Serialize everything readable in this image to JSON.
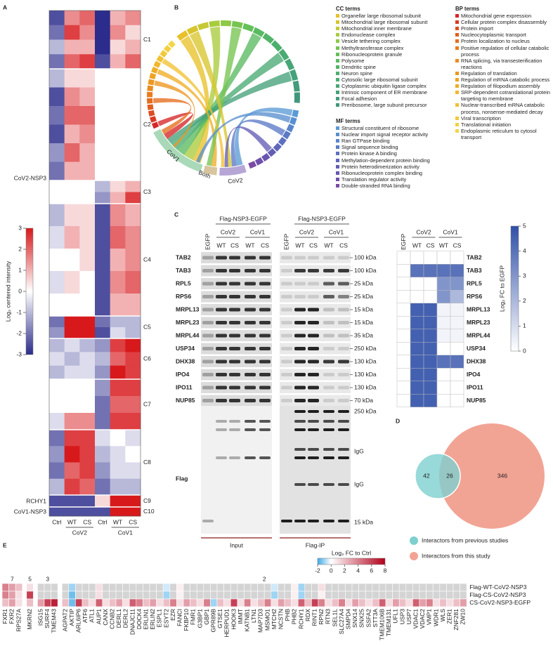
{
  "panel_labels": [
    "A",
    "B",
    "C",
    "D",
    "E"
  ],
  "panel_a": {
    "colorbar": {
      "label": "Log₂ centered intensity",
      "lim": [
        -3,
        3
      ],
      "ticks": [
        3,
        2,
        1,
        0,
        -1,
        -2,
        -3
      ],
      "color_stops": [
        [
          -3,
          "#2b2c8c"
        ],
        [
          0,
          "#ffffff"
        ],
        [
          3,
          "#d7191c"
        ]
      ]
    },
    "columns": [
      "Ctrl",
      "WT",
      "CS",
      "Ctrl",
      "WT",
      "CS"
    ],
    "groups": [
      "CoV2",
      "CoV1"
    ],
    "clusters": [
      {
        "name": "C1",
        "values": [
          [
            -2.5,
            1.5,
            2,
            -3,
            1,
            1.5
          ],
          [
            -2,
            2.5,
            1.5,
            -3,
            1.5,
            0.5
          ],
          [
            -1,
            1,
            1,
            -3,
            0.5,
            1
          ],
          [
            -2,
            2,
            2.5,
            -2.5,
            1,
            2
          ]
        ]
      },
      {
        "name": "C2",
        "values": [
          [
            -1,
            0.5,
            0.5,
            0,
            0,
            0
          ],
          [
            -2.5,
            1.5,
            1,
            0,
            0,
            0
          ],
          [
            -2,
            2,
            2,
            0,
            0,
            0
          ],
          [
            -2.5,
            1,
            1.5,
            0,
            0,
            0
          ],
          [
            -1.5,
            2,
            1,
            0,
            0,
            0
          ],
          [
            -2,
            1,
            1,
            0,
            0,
            0
          ]
        ]
      },
      {
        "name": "C3",
        "values": [
          [
            0,
            0,
            0,
            -1,
            0.5,
            1
          ],
          [
            0,
            0,
            0,
            -1.5,
            1,
            2.5
          ]
        ]
      },
      {
        "name": "C4",
        "values": [
          [
            -1,
            0.5,
            0.5,
            -2.5,
            1.5,
            1
          ],
          [
            -0.5,
            1,
            0.5,
            -2.5,
            2,
            1.5
          ],
          [
            0,
            0,
            0.5,
            -2.5,
            1,
            1.5
          ],
          [
            -0.5,
            0.5,
            0,
            -2.5,
            1.5,
            2
          ],
          [
            0,
            0,
            0,
            -2.5,
            1,
            1
          ]
        ]
      },
      {
        "name": "C5",
        "values": [
          [
            -2,
            3,
            3,
            -2,
            -1,
            -1
          ],
          [
            -1.5,
            3,
            3,
            -2.5,
            -0.5,
            -1
          ]
        ]
      },
      {
        "name": "C6",
        "values": [
          [
            -1,
            -0.5,
            -1,
            -1.5,
            2.5,
            3
          ],
          [
            -0.5,
            -1,
            -0.5,
            -1,
            2,
            2.5
          ],
          [
            -1,
            -0.5,
            -0.5,
            -1.5,
            3,
            2.5
          ]
        ]
      },
      {
        "name": "C7",
        "values": [
          [
            0,
            0,
            0,
            -1.5,
            2.5,
            2.5
          ],
          [
            0,
            0,
            0,
            -2,
            2,
            2
          ],
          [
            -0.5,
            1.5,
            1.5,
            -2,
            2.5,
            2.5
          ]
        ]
      },
      {
        "name": "C8",
        "values": [
          [
            -2,
            2.5,
            2.5,
            -0.5,
            0,
            -0.5
          ],
          [
            -1.5,
            3,
            2.5,
            -1,
            -0.5,
            0
          ],
          [
            -2,
            2,
            2.5,
            -1.5,
            -0.5,
            -0.5
          ],
          [
            -1,
            2.5,
            2,
            -2,
            -1,
            -1
          ]
        ]
      },
      {
        "name": "C9",
        "values": [
          [
            -2.5,
            -2.5,
            -2.5,
            0.5,
            3,
            3
          ]
        ]
      },
      {
        "name": "C10",
        "values": [
          [
            -2.5,
            -2.5,
            -2.5,
            -2.5,
            3,
            3
          ]
        ]
      }
    ],
    "row_labels": [
      {
        "text": "CoV2-NSP3",
        "color": "#222222"
      },
      {
        "text": "RCHY1",
        "color": "#d7191c"
      },
      {
        "text": "CoV1-NSP3",
        "color": "#222222"
      }
    ]
  },
  "panel_b": {
    "sets": [
      "CoV1",
      "Both",
      "CoV2"
    ],
    "set_colors": [
      "#a9d9b8",
      "#d8c59d",
      "#b6a6d6"
    ],
    "legends": [
      {
        "title": "CC terms",
        "terms": [
          "Organellar large ribosomal subunit",
          "Mitochondrial large ribosomal subunit",
          "Mitochondrial inner membrane",
          "Endonuclease complex",
          "Vesicle tethering complex",
          "Methyltransferase complex",
          "Ribonucleoprotein granule",
          "Polysome",
          "Dendritic spine",
          "Neuron spine",
          "Cytosolic large ribosomal subunit",
          "Cytoplasmic ubiquitin ligase complex",
          "Intrinsic component of ER membrane",
          "Focal adhesion",
          "Preribosome, large subunit precursor"
        ],
        "colors": [
          "#e8c12a",
          "#d8c52e",
          "#c5c935",
          "#a9cc3d",
          "#8ec947",
          "#77c451",
          "#65c05a",
          "#5aba62",
          "#52b569",
          "#4db06f",
          "#4aab73",
          "#47a677",
          "#45a17a",
          "#439c7c",
          "#41977e"
        ]
      },
      {
        "title": "MF terms",
        "terms": [
          "Structural constituent of ribosome",
          "Nuclear import signal receptor activity",
          "Ran GTPase binding",
          "Signal sequence binding",
          "Protein kinase A binding",
          "Methylation-dependent protein binding",
          "Protein heterodimerization activity",
          "Ribonucleoprotein complex binding",
          "Translation regulator activity",
          "Double-stranded RNA binding"
        ],
        "colors": [
          "#5b9bd5",
          "#5a90d0",
          "#5a85cb",
          "#5b7ac6",
          "#5d70c1",
          "#6066bc",
          "#645db6",
          "#6956b0",
          "#6f50aa",
          "#7a4ba3"
        ]
      },
      {
        "title": "BP terms",
        "terms": [
          "Mitochondrial gene expression",
          "Cellular protein complex disassembly",
          "Protein import",
          "Nucleocytoplasmic transport",
          "Protein localization to nucleus",
          "Positive regulation of cellular catabolic process",
          "RNA splicing, via transesterification reactions",
          "Regulation of translation",
          "Regulation of mRNA catabolic process",
          "Regulation of filopodium assembly",
          "SRP-dependent cotranslational protein targeting to membrane",
          "Nuclear-transcribed mRNA catabolic process, nonsense-mediated decay",
          "Viral transcription",
          "Translational initiation",
          "Endoplasmic reticulum to cytosol transport"
        ],
        "colors": [
          "#d62728",
          "#da3a25",
          "#de4c22",
          "#e25d20",
          "#e56d1e",
          "#e87c1d",
          "#eb8a1e",
          "#ed9720",
          "#efa323",
          "#f0ae27",
          "#f1b82c",
          "#f2c132",
          "#f2c938",
          "#f2d03f",
          "#f1d646"
        ]
      }
    ]
  },
  "panel_c": {
    "construct": "Flag-NSP3-EGFP",
    "control": "EGFP",
    "groups": [
      "CoV2",
      "CoV1"
    ],
    "variants": [
      "WT",
      "CS"
    ],
    "proteins": [
      "TAB2",
      "TAB3",
      "RPL5",
      "RPS6",
      "MRPL13",
      "MRPL23",
      "MRPL44",
      "USP34",
      "DHX38",
      "IPO4",
      "IPO11",
      "NUP85"
    ],
    "kda": [
      "100 kDa",
      "100 kDa",
      "25 kDa",
      "25 kDa",
      "15 kDa",
      "15 kDa",
      "35 kDa",
      "250 kDa",
      "130 kDa",
      "130 kDa",
      "130 kDa",
      "70 kDa"
    ],
    "flag_label": "Flag",
    "flag_markers": [
      "250 kDa",
      "IgG",
      "IgG",
      "15 kDa"
    ],
    "sections": [
      "Input",
      "Flag-IP"
    ],
    "heatmap": {
      "values": [
        [
          0,
          0,
          0,
          0,
          0
        ],
        [
          0,
          4,
          4,
          4,
          4
        ],
        [
          0,
          0,
          0,
          3,
          3
        ],
        [
          0,
          0,
          0,
          3,
          2
        ],
        [
          0,
          4.5,
          4.5,
          0.3,
          0.3
        ],
        [
          0,
          4.5,
          4.5,
          0.3,
          0.3
        ],
        [
          0,
          4.5,
          4.5,
          0.3,
          0.3
        ],
        [
          0,
          4.5,
          4.5,
          0,
          0
        ],
        [
          0,
          4.5,
          4.5,
          4,
          4
        ],
        [
          0,
          4.5,
          4.5,
          0,
          0
        ],
        [
          0,
          4.5,
          4.5,
          0,
          0
        ],
        [
          0,
          4.5,
          4.5,
          0,
          0
        ]
      ],
      "colorbar": {
        "label": "Log₂ FC to EGFP",
        "lim": [
          0,
          5
        ],
        "ticks": [
          0,
          1,
          2,
          3,
          4,
          5
        ],
        "color_stops": [
          [
            0,
            "#ffffff"
          ],
          [
            5,
            "#2f4fa8"
          ]
        ]
      }
    }
  },
  "panel_d": {
    "values": [
      42,
      26,
      346
    ],
    "colors": [
      "#7ecfcf",
      "#f2a494"
    ],
    "legend": [
      "Interactors from previous studies",
      "Interactors from this study"
    ]
  },
  "panel_e": {
    "colorbar": {
      "label": "Log₂ FC to Ctrl",
      "lim": [
        -2,
        8
      ],
      "ticks": [
        -2,
        0,
        2,
        4,
        6,
        8
      ],
      "color_stops": [
        [
          -2,
          "#3fa9e6"
        ],
        [
          0,
          "#ffffff"
        ],
        [
          8,
          "#b2001b"
        ]
      ]
    },
    "missing_color": "#d4d4d4",
    "highlight_color": "#d7191c",
    "rows": [
      "Flag-WT-CoV2-NSP3",
      "Flag-CS-CoV2-NSP3",
      "CS-CoV2-NSP3-EGFP"
    ],
    "groups": [
      {
        "label": "7",
        "genes": [
          "FXR1",
          "FXR2",
          "RPS27A"
        ],
        "highlighted": [
          true,
          true,
          false
        ],
        "values": [
          [
            4,
            3,
            2
          ],
          [
            4,
            3,
            1
          ],
          [
            2,
            3,
            1
          ]
        ]
      },
      {
        "label": "5",
        "genes": [
          "MKRN2"
        ],
        "highlighted": [
          true
        ],
        "values": [
          [
            1
          ],
          [
            6
          ],
          [
            2
          ]
        ]
      },
      {
        "label": "3",
        "genes": [
          "ISG15",
          "SURF4",
          "TMEM43"
        ],
        "highlighted": [
          false,
          true,
          true
        ],
        "values": [
          [
            null,
            null,
            null
          ],
          [
            null,
            null,
            null
          ],
          [
            3,
            6,
            7
          ]
        ]
      },
      {
        "label": "2",
        "genes": [
          "AGPAT2",
          "AKTIP",
          "ARL6IP6",
          "ATF6",
          "ATL1",
          "AUP1",
          "CANX",
          "CCNB2",
          "DERL1",
          "DERL2",
          "DNAJC11",
          "DOCK4",
          "ERLIN1",
          "ERLIN2",
          "ESPL1",
          "ESYT2",
          "EZR",
          "FANCI",
          "FKBP10",
          "FMR1",
          "G3BP1",
          "GBP1",
          "GPR89B",
          "GTSE1",
          "HERPUD1",
          "HOOK3",
          "IMMT",
          "KATNB1",
          "LTN1",
          "MAP7D3",
          "MSMO1",
          "MTCH2",
          "NCSTN",
          "PHB",
          "PHB2",
          "RCHY1",
          "RDX",
          "RINT1",
          "RPN2",
          "RTN3",
          "SEL1L",
          "SLC27A4",
          "SMPD4",
          "SNX14",
          "SNX25",
          "SSFA2",
          "STT3A",
          "TMEM106B",
          "TMEM131",
          "UFL1",
          "USP3",
          "USP7",
          "VDAC1",
          "VDAC2",
          "VMP1",
          "WDR1",
          "WLS",
          "ZER1",
          "ZNF281",
          "ZW10"
        ],
        "highlighted": [
          false,
          false,
          true,
          false,
          false,
          true,
          false,
          false,
          true,
          true,
          true,
          false,
          false,
          true,
          true,
          false,
          false,
          true,
          false,
          true,
          false,
          false,
          true,
          false,
          false,
          false,
          false,
          false,
          true,
          false,
          false,
          true,
          false,
          false,
          false,
          true,
          false,
          false,
          true,
          true,
          true,
          false,
          false,
          false,
          false,
          false,
          true,
          false,
          false,
          false,
          false,
          false,
          true,
          true,
          true,
          false,
          true,
          false,
          false,
          false
        ],
        "values": [
          [
            null,
            -1,
            null,
            null,
            null,
            1,
            null,
            null,
            null,
            null,
            null,
            null,
            null,
            null,
            null,
            -0.5,
            null,
            0.5,
            null,
            null,
            null,
            null,
            null,
            null,
            null,
            null,
            null,
            null,
            null,
            null,
            null,
            -0.5,
            null,
            null,
            0.5,
            -1,
            null,
            null,
            1,
            null,
            null,
            null,
            null,
            null,
            null,
            null,
            null,
            null,
            null,
            null,
            null,
            null,
            null,
            null,
            null,
            null,
            null,
            null,
            null,
            null
          ],
          [
            null,
            -1.5,
            null,
            null,
            null,
            1,
            null,
            null,
            null,
            null,
            null,
            null,
            null,
            null,
            null,
            -1,
            null,
            0.5,
            null,
            null,
            null,
            null,
            null,
            null,
            null,
            null,
            null,
            null,
            null,
            null,
            null,
            -1,
            null,
            null,
            0.5,
            -1,
            null,
            null,
            0.5,
            null,
            null,
            null,
            null,
            null,
            null,
            null,
            null,
            null,
            null,
            null,
            null,
            null,
            null,
            null,
            null,
            null,
            null,
            null,
            null,
            null
          ],
          [
            2,
            -1.5,
            6,
            2,
            1,
            5,
            1,
            2,
            3,
            1,
            5,
            4,
            2,
            3,
            1,
            2,
            4,
            1,
            3,
            2,
            1,
            4,
            -1,
            2,
            1,
            6,
            1,
            4,
            1,
            2,
            4,
            1,
            3,
            2,
            1,
            5,
            2,
            6,
            4,
            1,
            2,
            4,
            1,
            3,
            2,
            1,
            2,
            5,
            1,
            3,
            2,
            1,
            5,
            3,
            4,
            1,
            2,
            1,
            2,
            3
          ]
        ]
      }
    ]
  }
}
